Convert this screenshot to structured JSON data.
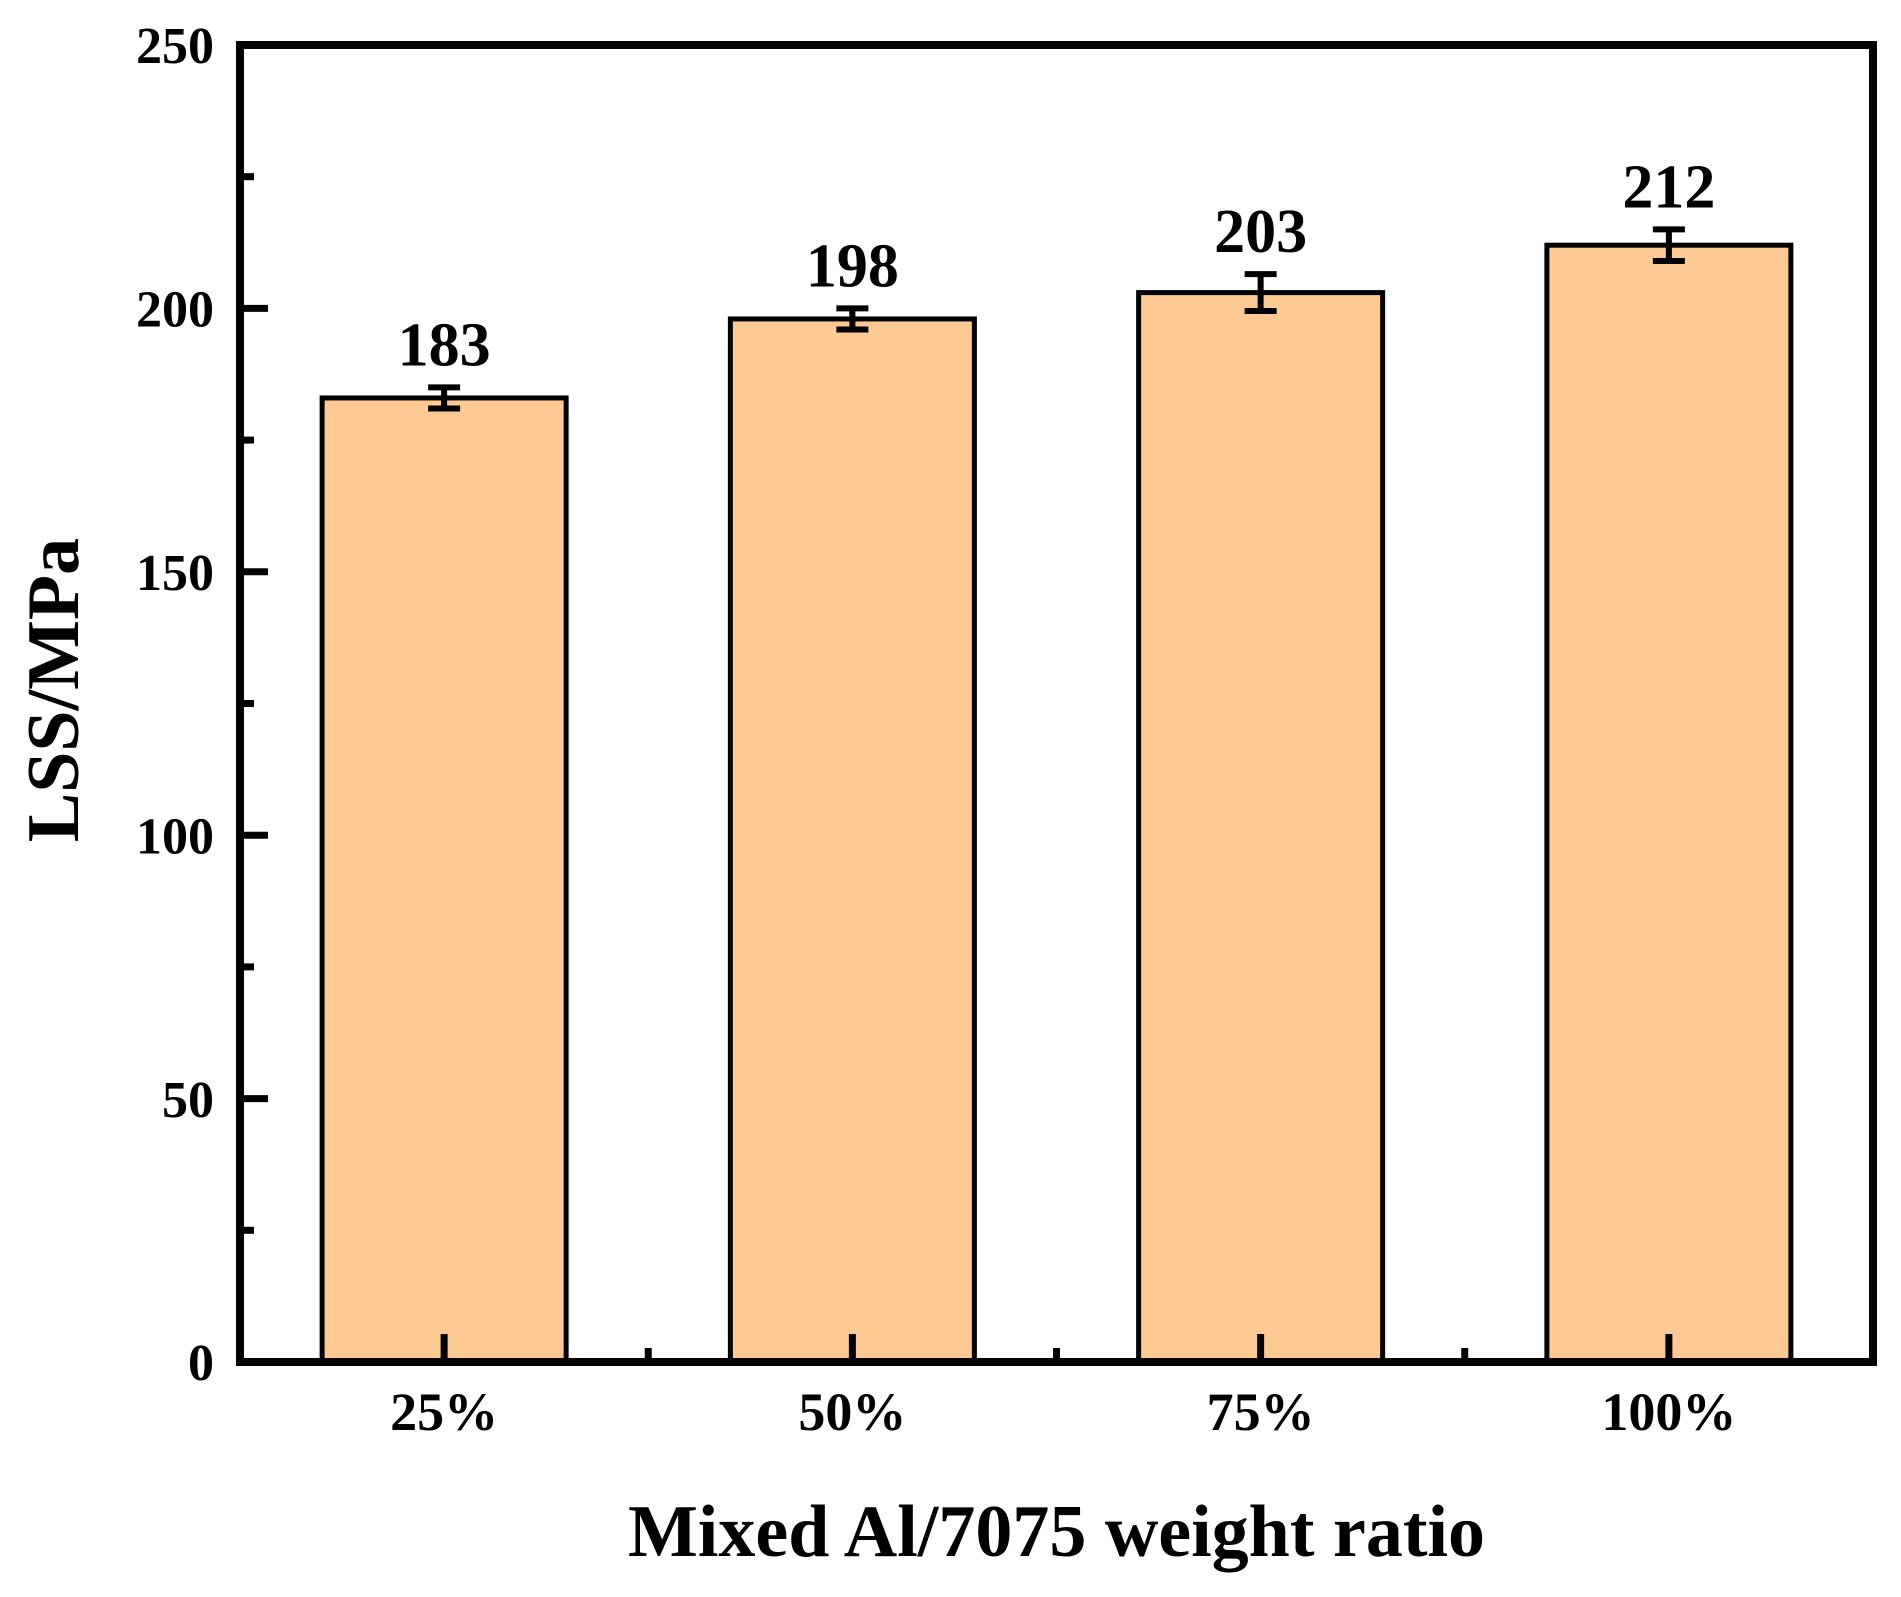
{
  "figure": {
    "background": "#FFFFFF"
  },
  "chart_data": {
    "type": "bar",
    "title": "",
    "xlabel": "Mixed Al/7075 weight ratio",
    "ylabel": "LSS/MPa",
    "categories": [
      "25%",
      "50%",
      "75%",
      "100%"
    ],
    "values": [
      183,
      198,
      203,
      212
    ],
    "errors": [
      2,
      2,
      3.5,
      3
    ],
    "value_labels": [
      "183",
      "198",
      "203",
      "212"
    ],
    "ylim": [
      0,
      250
    ],
    "y_major_ticks": [
      0,
      50,
      100,
      150,
      200,
      250
    ],
    "y_tick_labels": [
      "0",
      "50",
      "100",
      "150",
      "200",
      "250"
    ],
    "y_minor_ticks": [
      25,
      75,
      125,
      175,
      225
    ],
    "grid": false,
    "legend_position": "none",
    "tick_direction": "in",
    "bar_fill": "#FFC994",
    "bar_stroke": "#000000",
    "axis_color": "#000000",
    "text_color": "#000000"
  }
}
